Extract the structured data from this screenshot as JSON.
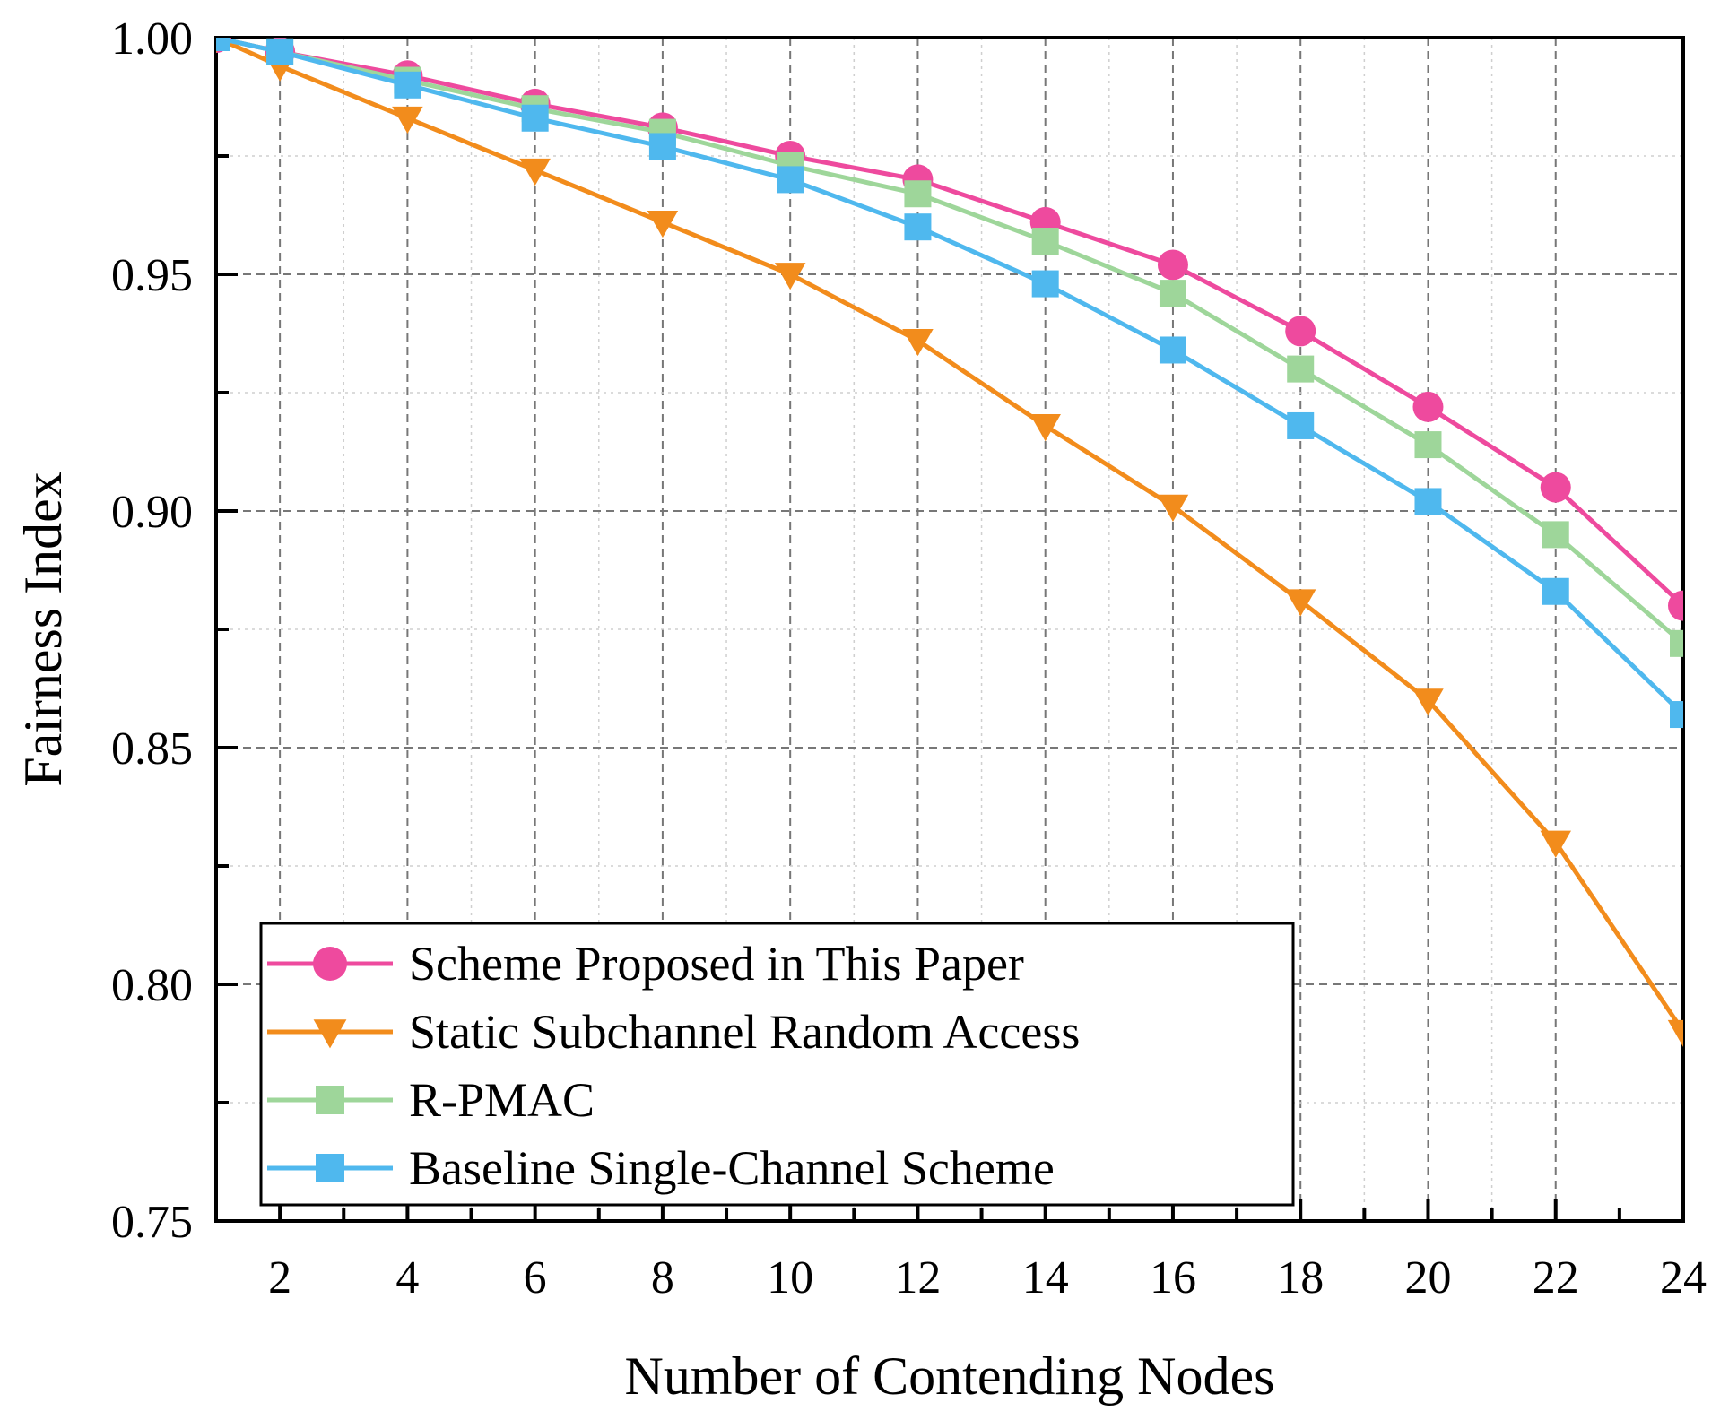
{
  "chart_data": {
    "type": "line",
    "title": "",
    "xlabel": "Number of Contending Nodes",
    "ylabel": "Fairness Index",
    "xlim": [
      1,
      24
    ],
    "ylim": [
      0.75,
      1.0
    ],
    "x_ticks": [
      2,
      4,
      6,
      8,
      10,
      12,
      14,
      16,
      18,
      20,
      22,
      24
    ],
    "x_tick_labels": [
      "2",
      "4",
      "6",
      "8",
      "10",
      "12",
      "14",
      "16",
      "18",
      "20",
      "22",
      "24"
    ],
    "y_ticks": [
      0.75,
      0.8,
      0.85,
      0.9,
      0.95,
      1.0
    ],
    "y_tick_labels": [
      "0.75",
      "0.80",
      "0.85",
      "0.90",
      "0.95",
      "1.00"
    ],
    "grid": true,
    "legend_position": "bottom-left",
    "x": [
      1,
      2,
      4,
      6,
      8,
      10,
      12,
      14,
      16,
      18,
      20,
      22,
      24
    ],
    "series": [
      {
        "name": "Scheme Proposed in This Paper",
        "color": "#EE4A9E",
        "marker": "circle",
        "values": [
          1.0,
          0.997,
          0.992,
          0.986,
          0.981,
          0.975,
          0.97,
          0.961,
          0.952,
          0.938,
          0.922,
          0.905,
          0.88
        ]
      },
      {
        "name": "Static Subchannel Random Access",
        "color": "#F28C1C",
        "marker": "triangle-down",
        "values": [
          1.0,
          0.994,
          0.983,
          0.972,
          0.961,
          0.95,
          0.936,
          0.918,
          0.901,
          0.881,
          0.86,
          0.83,
          0.79
        ]
      },
      {
        "name": "R-PMAC",
        "color": "#9ED69A",
        "marker": "square",
        "values": [
          1.0,
          0.997,
          0.991,
          0.985,
          0.98,
          0.973,
          0.967,
          0.957,
          0.946,
          0.93,
          0.914,
          0.895,
          0.872
        ]
      },
      {
        "name": "Baseline Single-Channel Scheme",
        "color": "#4FB8EE",
        "marker": "square",
        "values": [
          1.0,
          0.997,
          0.99,
          0.983,
          0.977,
          0.97,
          0.96,
          0.948,
          0.934,
          0.918,
          0.902,
          0.883,
          0.857
        ]
      }
    ]
  }
}
